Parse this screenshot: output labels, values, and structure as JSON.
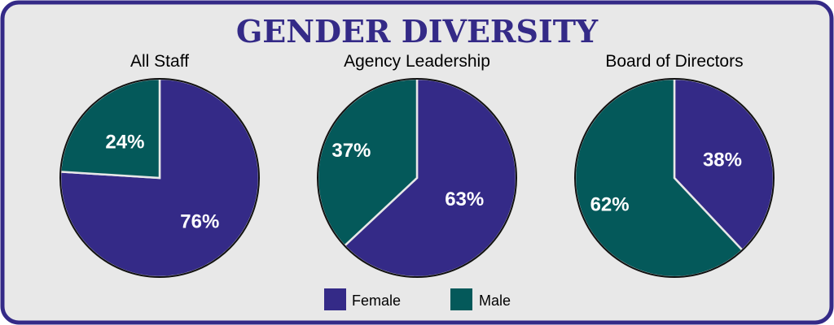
{
  "colors": {
    "female": "#342a87",
    "male": "#04595a",
    "frame": "#342a87",
    "panel": "#e8e8e8"
  },
  "chart_data": {
    "type": "pie",
    "title": "GENDER DIVERSITY",
    "legend": {
      "placement": "bottom",
      "items": [
        {
          "label": "Female",
          "color": "#342a87"
        },
        {
          "label": "Male",
          "color": "#04595a"
        }
      ]
    },
    "charts": [
      {
        "title": "All Staff",
        "slices": [
          {
            "label": "Female",
            "value": 76,
            "text": "76%"
          },
          {
            "label": "Male",
            "value": 24,
            "text": "24%"
          }
        ]
      },
      {
        "title": "Agency Leadership",
        "slices": [
          {
            "label": "Female",
            "value": 63,
            "text": "63%"
          },
          {
            "label": "Male",
            "value": 37,
            "text": "37%"
          }
        ]
      },
      {
        "title": "Board of Directors",
        "slices": [
          {
            "label": "Female",
            "value": 38,
            "text": "38%"
          },
          {
            "label": "Male",
            "value": 62,
            "text": "62%"
          }
        ]
      }
    ]
  }
}
